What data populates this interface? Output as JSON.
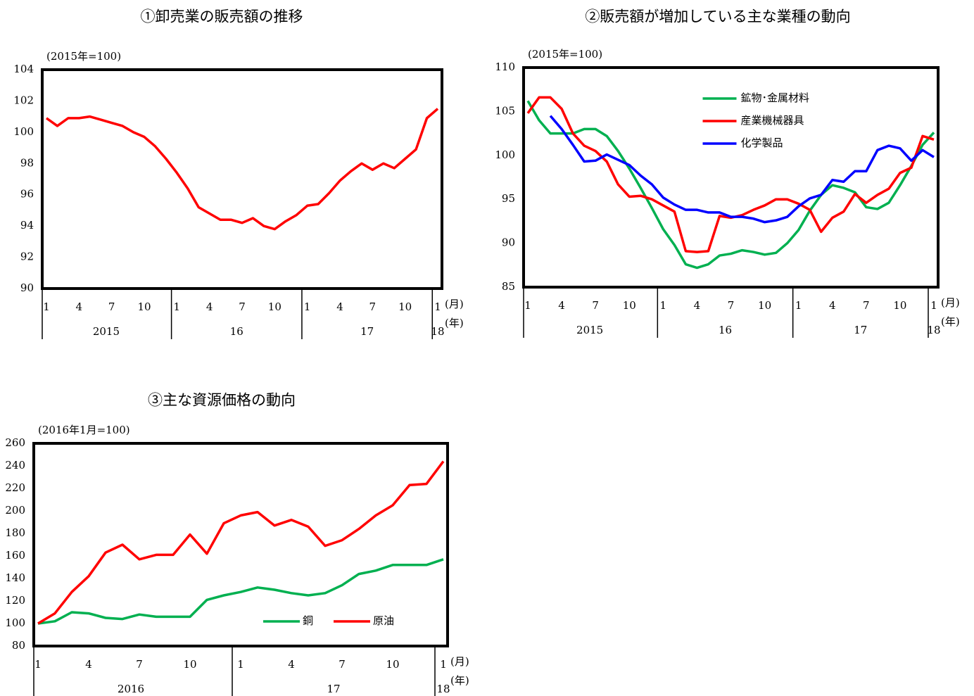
{
  "chart_data": [
    {
      "type": "line",
      "title": "①卸売業の販売額の推移",
      "y_label": "(2015年=100)",
      "x_label": "(月)",
      "x_group_label": "(年)",
      "categories": [
        "1",
        null,
        null,
        "4",
        null,
        null,
        "7",
        null,
        null,
        "10",
        null,
        null,
        "1",
        null,
        null,
        "4",
        null,
        null,
        "7",
        null,
        null,
        "10",
        null,
        null,
        "1",
        null,
        null,
        "4",
        null,
        null,
        "7",
        null,
        null,
        "10",
        null,
        null,
        "1"
      ],
      "x_groups": [
        "2015",
        "16",
        "17",
        "18"
      ],
      "ylim": [
        90,
        104
      ],
      "yticks": [
        90,
        92,
        94,
        96,
        98,
        100,
        102,
        104
      ],
      "series": [
        {
          "name": null,
          "color": "#ff0000",
          "values": [
            100.9,
            100.4,
            100.9,
            100.9,
            101.0,
            100.8,
            100.6,
            100.4,
            100.0,
            99.7,
            99.1,
            98.3,
            97.4,
            96.4,
            95.2,
            94.8,
            94.4,
            94.4,
            94.2,
            94.5,
            94.0,
            93.8,
            94.3,
            94.7,
            95.3,
            95.4,
            96.1,
            96.9,
            97.5,
            98.0,
            97.6,
            98.0,
            97.7,
            98.3,
            98.9,
            100.9,
            101.5
          ]
        }
      ]
    },
    {
      "type": "line",
      "title": "②販売額が増加している主な業種の動向",
      "y_label": "(2015年=100)",
      "x_label": "(月)",
      "x_group_label": "(年)",
      "categories": [
        "1",
        null,
        null,
        "4",
        null,
        null,
        "7",
        null,
        null,
        "10",
        null,
        null,
        "1",
        null,
        null,
        "4",
        null,
        null,
        "7",
        null,
        null,
        "10",
        null,
        null,
        "1",
        null,
        null,
        "4",
        null,
        null,
        "7",
        null,
        null,
        "10",
        null,
        null,
        "1"
      ],
      "x_groups": [
        "2015",
        "16",
        "17",
        "18"
      ],
      "ylim": [
        85,
        110
      ],
      "yticks": [
        85,
        90,
        95,
        100,
        105,
        110
      ],
      "legend": "upper center",
      "series": [
        {
          "name": "鉱物･金属材料",
          "color": "#00b050",
          "values": [
            106.2,
            104.0,
            102.5,
            102.5,
            102.5,
            103.0,
            103.0,
            102.2,
            100.5,
            98.5,
            96.3,
            94.0,
            91.6,
            89.8,
            87.6,
            87.2,
            87.6,
            88.6,
            88.8,
            89.2,
            89.0,
            88.7,
            88.9,
            90.0,
            91.5,
            93.7,
            95.5,
            96.6,
            96.3,
            95.8,
            94.1,
            93.9,
            94.6,
            96.6,
            98.8,
            101.2,
            102.6
          ]
        },
        {
          "name": "産業機械器具",
          "color": "#ff0000",
          "values": [
            104.8,
            106.6,
            106.6,
            105.3,
            102.5,
            101.1,
            100.5,
            99.3,
            96.7,
            95.3,
            95.4,
            95.0,
            94.3,
            93.6,
            89.1,
            89.0,
            89.1,
            93.1,
            92.9,
            93.2,
            93.8,
            94.3,
            95.0,
            95.0,
            94.5,
            93.8,
            91.3,
            92.9,
            93.6,
            95.6,
            94.6,
            95.5,
            96.2,
            98.0,
            98.6,
            102.2,
            101.8
          ]
        },
        {
          "name": "化学製品",
          "color": "#0000ff",
          "values": [
            null,
            null,
            104.5,
            103.0,
            101.2,
            99.3,
            99.4,
            100.1,
            99.5,
            98.9,
            97.7,
            96.7,
            95.2,
            94.4,
            93.8,
            93.8,
            93.5,
            93.5,
            93.0,
            93.0,
            92.8,
            92.4,
            92.6,
            93.0,
            94.2,
            95.1,
            95.5,
            97.2,
            97.0,
            98.2,
            98.2,
            100.6,
            101.1,
            100.8,
            99.4,
            100.6,
            99.8
          ]
        }
      ]
    },
    {
      "type": "line",
      "title": "③主な資源価格の動向",
      "y_label": "(2016年1月=100)",
      "x_label": "(月)",
      "x_group_label": "(年)",
      "categories": [
        "1",
        null,
        null,
        "4",
        null,
        null,
        "7",
        null,
        null,
        "10",
        null,
        null,
        "1",
        null,
        null,
        "4",
        null,
        null,
        "7",
        null,
        null,
        "10",
        null,
        null,
        "1"
      ],
      "x_groups": [
        "2016",
        "17",
        "18"
      ],
      "ylim": [
        80,
        260
      ],
      "yticks": [
        80,
        100,
        120,
        140,
        160,
        180,
        200,
        220,
        240,
        260
      ],
      "legend": "lower right",
      "series": [
        {
          "name": "銅",
          "color": "#00b050",
          "values": [
            100,
            102,
            110,
            109,
            105,
            104,
            108,
            106,
            106,
            106,
            121,
            125,
            128,
            132,
            130,
            127,
            125,
            127,
            134,
            144,
            147,
            152,
            152,
            152,
            157
          ]
        },
        {
          "name": "原油",
          "color": "#ff0000",
          "values": [
            100,
            109,
            128,
            142,
            163,
            170,
            157,
            161,
            161,
            179,
            162,
            189,
            196,
            199,
            187,
            192,
            186,
            169,
            174,
            184,
            196,
            205,
            223,
            224,
            244
          ]
        }
      ]
    }
  ]
}
